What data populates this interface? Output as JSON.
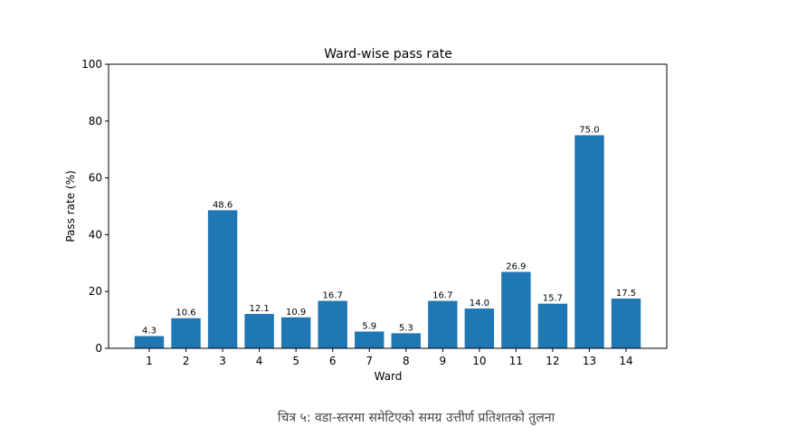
{
  "caption": "चित्र ५: वडा-स्तरमा समेटिएको समग्र उत्तीर्ण प्रतिशतको तुलना",
  "chart_data": {
    "type": "bar",
    "title": "Ward-wise pass rate",
    "xlabel": "Ward",
    "ylabel": "Pass rate (%)",
    "categories": [
      "1",
      "2",
      "3",
      "4",
      "5",
      "6",
      "7",
      "8",
      "9",
      "10",
      "11",
      "12",
      "13",
      "14"
    ],
    "values": [
      4.3,
      10.6,
      48.6,
      12.1,
      10.9,
      16.7,
      5.9,
      5.3,
      16.7,
      14.0,
      26.9,
      15.7,
      75.0,
      17.5
    ],
    "data_labels": [
      "4.3",
      "10.6",
      "48.6",
      "12.1",
      "10.9",
      "16.7",
      "5.9",
      "5.3",
      "16.7",
      "14.0",
      "26.9",
      "15.7",
      "75.0",
      "17.5"
    ],
    "ylim": [
      0,
      100
    ],
    "yticks": [
      "0",
      "20",
      "40",
      "60",
      "80",
      "100"
    ],
    "bar_color": "#1f77b4",
    "grid": false,
    "legend": "none"
  }
}
